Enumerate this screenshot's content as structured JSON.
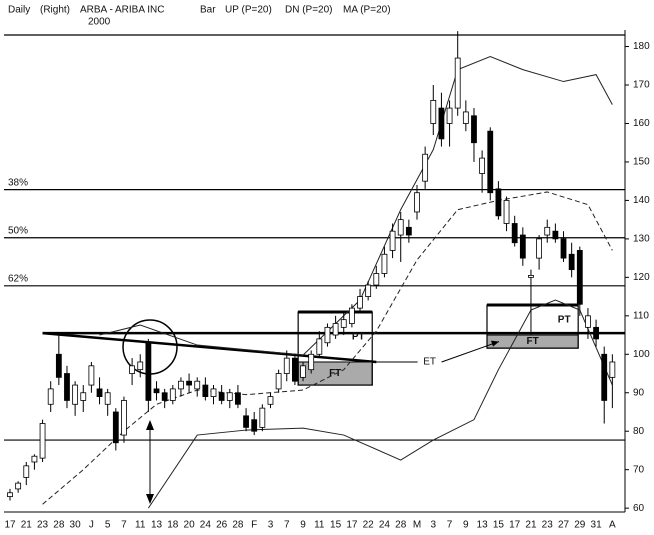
{
  "chart_data": {
    "type": "candlestick",
    "period": "Daily",
    "scale_side": "(Right)",
    "title": "ARBA - ARIBA INC",
    "year": "2000",
    "bar_label": "Bar",
    "categories": [
      "17",
      null,
      "21",
      null,
      "23",
      null,
      "28",
      null,
      "30",
      null,
      "J",
      null,
      "5",
      null,
      "7",
      null,
      "11",
      null,
      "13",
      null,
      "18",
      null,
      "20",
      null,
      "24",
      null,
      "26",
      null,
      "28",
      null,
      "F",
      null,
      "3",
      null,
      "7",
      null,
      "9",
      null,
      "11",
      null,
      "15",
      null,
      "17",
      null,
      "22",
      null,
      "24",
      null,
      "28",
      null,
      "M",
      null,
      "3",
      null,
      "7",
      null,
      "9",
      null,
      "13",
      null,
      "15",
      null,
      "17",
      null,
      "21",
      null,
      "23",
      null,
      "27",
      null,
      "29",
      null,
      "31",
      null,
      "A"
    ],
    "open": [
      63,
      65,
      68,
      72,
      73,
      87,
      100,
      95,
      87,
      88,
      92,
      91,
      87,
      85,
      79,
      95,
      96,
      103,
      91,
      90,
      88,
      91,
      93,
      91,
      92,
      89,
      90,
      88,
      90,
      84,
      83,
      81,
      87,
      91,
      95,
      99,
      94,
      96,
      100,
      103,
      105,
      107,
      108,
      112,
      115,
      118,
      121,
      127,
      131,
      133,
      137,
      145,
      160,
      164,
      160,
      164,
      160,
      162,
      147,
      158,
      143,
      134,
      134,
      131,
      120,
      125,
      131,
      132,
      130,
      126,
      127,
      107,
      107,
      100,
      94
    ],
    "high": [
      65,
      67,
      72,
      74,
      83,
      93,
      105,
      97,
      93,
      92,
      98,
      94,
      91,
      86,
      89,
      99,
      100,
      104,
      93,
      91,
      92,
      94,
      95,
      94,
      94,
      92,
      92,
      91,
      92,
      86,
      85,
      87,
      90,
      96,
      101,
      100,
      98,
      101,
      106,
      108,
      110,
      111,
      113,
      117,
      119,
      123,
      128,
      134,
      137,
      135,
      144,
      154,
      170,
      168,
      166,
      184,
      166,
      164,
      153,
      159,
      145,
      141,
      136,
      133,
      122,
      131,
      135,
      134,
      132,
      129,
      128,
      112,
      109,
      102,
      100
    ],
    "low": [
      62,
      64,
      66,
      70,
      72,
      85,
      92,
      86,
      84,
      85,
      90,
      87,
      84,
      75,
      77,
      92,
      94,
      85,
      88,
      86,
      87,
      89,
      90,
      89,
      88,
      87,
      87,
      86,
      86,
      80,
      79,
      80,
      86,
      90,
      93,
      92,
      93,
      95,
      99,
      102,
      104,
      105,
      107,
      111,
      114,
      117,
      120,
      125,
      124,
      129,
      135,
      143,
      157,
      154,
      154,
      162,
      158,
      150,
      142,
      140,
      135,
      132,
      128,
      123,
      105,
      122,
      129,
      129,
      124,
      120,
      110,
      104,
      102,
      82,
      86
    ],
    "close": [
      64,
      66.5,
      71,
      73.5,
      82,
      91,
      94,
      88,
      92,
      90,
      97,
      89,
      90,
      77,
      88,
      97,
      98,
      88,
      90,
      88,
      91,
      93,
      92,
      93,
      89,
      91,
      88,
      90,
      87,
      81,
      80,
      86,
      89,
      95,
      99,
      93,
      97,
      100,
      104,
      107,
      108,
      109,
      112,
      115,
      118,
      121,
      126,
      132,
      135,
      131,
      142,
      152,
      166,
      156,
      164,
      177,
      163,
      155,
      151,
      142,
      136,
      140,
      129,
      125,
      120.5,
      130,
      133,
      130,
      125,
      122,
      113,
      110,
      104,
      88,
      98
    ],
    "series": [
      {
        "name": "UP (P=20)",
        "color": "#222222",
        "dash": false,
        "x": [
          11,
          16,
          23,
          36,
          43,
          48,
          52,
          55,
          59,
          63,
          68,
          72,
          74
        ],
        "values": [
          105,
          107.6,
          102.4,
          99.8,
          114.1,
          137.6,
          153.2,
          174,
          177.4,
          174,
          170.9,
          172.7,
          164.9
        ]
      },
      {
        "name": "DN (P=20)",
        "color": "#222222",
        "dash": false,
        "x": [
          17,
          23,
          29,
          36,
          41,
          48,
          52,
          57,
          60,
          64,
          67,
          70,
          74
        ],
        "values": [
          60,
          79,
          80.3,
          80.8,
          79,
          72.5,
          77.7,
          83,
          96,
          111.5,
          114.1,
          111.5,
          92
        ]
      },
      {
        "name": "MA (P=20)",
        "color": "#222222",
        "dash": true,
        "x": [
          4,
          9,
          14,
          18,
          23,
          29,
          36,
          41,
          45,
          50,
          55,
          60,
          66,
          71,
          74
        ],
        "values": [
          61,
          70,
          80,
          87,
          90.7,
          89.5,
          90.7,
          96,
          106,
          124.5,
          137.6,
          140,
          142.2,
          138.9,
          127
        ]
      }
    ],
    "ylim": [
      59,
      183
    ],
    "yticks": [
      60,
      70,
      80,
      90,
      100,
      110,
      120,
      130,
      140,
      150,
      160,
      170,
      180
    ],
    "hlines": [
      183,
      77.7
    ],
    "fib_levels": [
      {
        "value": 142.8,
        "label": "38%"
      },
      {
        "value": 130.3,
        "label": "50%"
      },
      {
        "value": 117.8,
        "label": "62%"
      }
    ],
    "resistance": {
      "x": [
        4,
        74
      ],
      "value": 105.5
    },
    "trendline": {
      "x": [
        4,
        45
      ],
      "values": [
        105.5,
        98
      ]
    },
    "boxes": [
      {
        "x": [
          35.4,
          44.5
        ],
        "top": 111,
        "shade": [
          92,
          98
        ],
        "labels": [
          "PT",
          "FT"
        ]
      },
      {
        "x": [
          58.6,
          69.8
        ],
        "top": 112.8,
        "shade": [
          101.6,
          105
        ],
        "labels": [
          "PT",
          "FT"
        ]
      }
    ],
    "et_label": "ET"
  }
}
